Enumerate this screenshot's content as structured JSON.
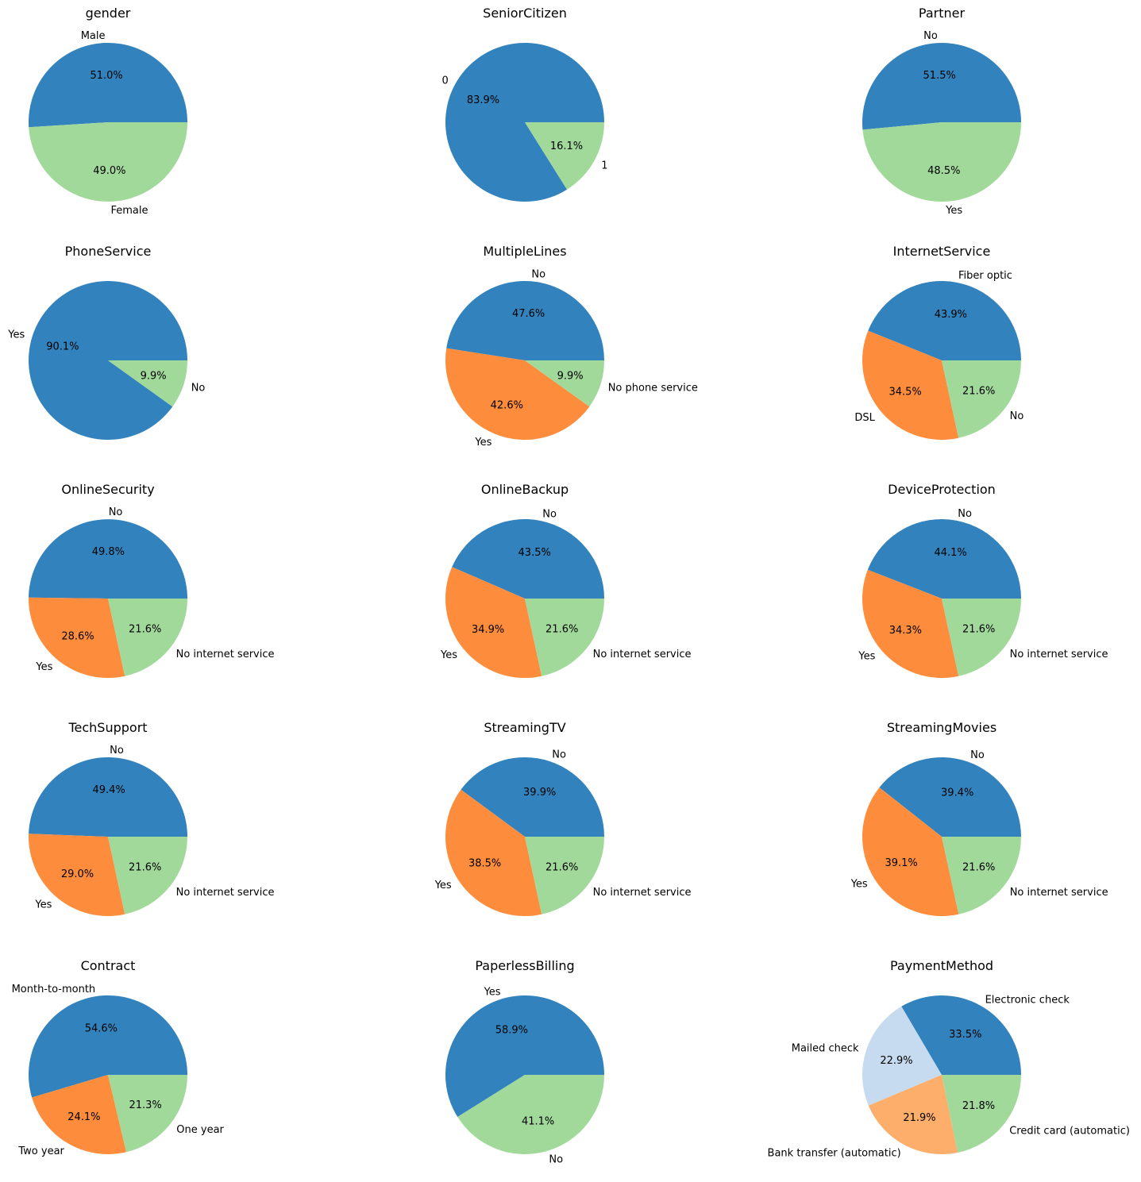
{
  "figure": {
    "colors": {
      "blue": "#3182bd",
      "orange": "#fd8d3c",
      "green": "#a1d99b",
      "lightblue": "#c6dbef",
      "lightorange": "#fdae6b"
    }
  },
  "chart_data": [
    {
      "type": "pie",
      "title": "gender",
      "labels": [
        "Male",
        "Female"
      ],
      "values": [
        51.0,
        49.0
      ],
      "colors": [
        "#3182bd",
        "#a1d99b"
      ],
      "pct_labels": [
        "51.0%",
        "49.0%"
      ]
    },
    {
      "type": "pie",
      "title": "SeniorCitizen",
      "labels": [
        "0",
        "1"
      ],
      "values": [
        83.9,
        16.1
      ],
      "colors": [
        "#3182bd",
        "#a1d99b"
      ],
      "pct_labels": [
        "83.9%",
        "16.1%"
      ]
    },
    {
      "type": "pie",
      "title": "Partner",
      "labels": [
        "No",
        "Yes"
      ],
      "values": [
        51.5,
        48.5
      ],
      "colors": [
        "#3182bd",
        "#a1d99b"
      ],
      "pct_labels": [
        "51.5%",
        "48.5%"
      ]
    },
    {
      "type": "pie",
      "title": "PhoneService",
      "labels": [
        "Yes",
        "No"
      ],
      "values": [
        90.1,
        9.9
      ],
      "colors": [
        "#3182bd",
        "#a1d99b"
      ],
      "pct_labels": [
        "90.1%",
        "9.9%"
      ]
    },
    {
      "type": "pie",
      "title": "MultipleLines",
      "labels": [
        "No",
        "Yes",
        "No phone service"
      ],
      "values": [
        47.6,
        42.6,
        9.9
      ],
      "colors": [
        "#3182bd",
        "#fd8d3c",
        "#a1d99b"
      ],
      "pct_labels": [
        "47.6%",
        "42.6%",
        "9.9%"
      ]
    },
    {
      "type": "pie",
      "title": "InternetService",
      "labels": [
        "Fiber optic",
        "DSL",
        "No"
      ],
      "values": [
        43.9,
        34.5,
        21.6
      ],
      "colors": [
        "#3182bd",
        "#fd8d3c",
        "#a1d99b"
      ],
      "pct_labels": [
        "43.9%",
        "34.5%",
        "21.6%"
      ]
    },
    {
      "type": "pie",
      "title": "OnlineSecurity",
      "labels": [
        "No",
        "Yes",
        "No internet service"
      ],
      "values": [
        49.8,
        28.6,
        21.6
      ],
      "colors": [
        "#3182bd",
        "#fd8d3c",
        "#a1d99b"
      ],
      "pct_labels": [
        "49.8%",
        "28.6%",
        "21.6%"
      ]
    },
    {
      "type": "pie",
      "title": "OnlineBackup",
      "labels": [
        "No",
        "Yes",
        "No internet service"
      ],
      "values": [
        43.5,
        34.9,
        21.6
      ],
      "colors": [
        "#3182bd",
        "#fd8d3c",
        "#a1d99b"
      ],
      "pct_labels": [
        "43.5%",
        "34.9%",
        "21.6%"
      ]
    },
    {
      "type": "pie",
      "title": "DeviceProtection",
      "labels": [
        "No",
        "Yes",
        "No internet service"
      ],
      "values": [
        44.1,
        34.3,
        21.6
      ],
      "colors": [
        "#3182bd",
        "#fd8d3c",
        "#a1d99b"
      ],
      "pct_labels": [
        "44.1%",
        "34.3%",
        "21.6%"
      ]
    },
    {
      "type": "pie",
      "title": "TechSupport",
      "labels": [
        "No",
        "Yes",
        "No internet service"
      ],
      "values": [
        49.4,
        29.0,
        21.6
      ],
      "colors": [
        "#3182bd",
        "#fd8d3c",
        "#a1d99b"
      ],
      "pct_labels": [
        "49.4%",
        "29.0%",
        "21.6%"
      ]
    },
    {
      "type": "pie",
      "title": "StreamingTV",
      "labels": [
        "No",
        "Yes",
        "No internet service"
      ],
      "values": [
        39.9,
        38.5,
        21.6
      ],
      "colors": [
        "#3182bd",
        "#fd8d3c",
        "#a1d99b"
      ],
      "pct_labels": [
        "39.9%",
        "38.5%",
        "21.6%"
      ]
    },
    {
      "type": "pie",
      "title": "StreamingMovies",
      "labels": [
        "No",
        "Yes",
        "No internet service"
      ],
      "values": [
        39.4,
        39.1,
        21.6
      ],
      "colors": [
        "#3182bd",
        "#fd8d3c",
        "#a1d99b"
      ],
      "pct_labels": [
        "39.4%",
        "39.1%",
        "21.6%"
      ]
    },
    {
      "type": "pie",
      "title": "Contract",
      "labels": [
        "Month-to-month",
        "Two year",
        "One year"
      ],
      "values": [
        54.6,
        24.1,
        21.3
      ],
      "colors": [
        "#3182bd",
        "#fd8d3c",
        "#a1d99b"
      ],
      "pct_labels": [
        "54.6%",
        "24.1%",
        "21.3%"
      ]
    },
    {
      "type": "pie",
      "title": "PaperlessBilling",
      "labels": [
        "Yes",
        "No"
      ],
      "values": [
        58.9,
        41.1
      ],
      "colors": [
        "#3182bd",
        "#a1d99b"
      ],
      "pct_labels": [
        "58.9%",
        "41.1%"
      ]
    },
    {
      "type": "pie",
      "title": "PaymentMethod",
      "labels": [
        "Electronic check",
        "Mailed check",
        "Bank transfer (automatic)",
        "Credit card (automatic)"
      ],
      "values": [
        33.5,
        22.9,
        21.9,
        21.8
      ],
      "colors": [
        "#3182bd",
        "#c6dbef",
        "#fdae6b",
        "#a1d99b"
      ],
      "pct_labels": [
        "33.5%",
        "22.9%",
        "21.9%",
        "21.8%"
      ]
    }
  ]
}
